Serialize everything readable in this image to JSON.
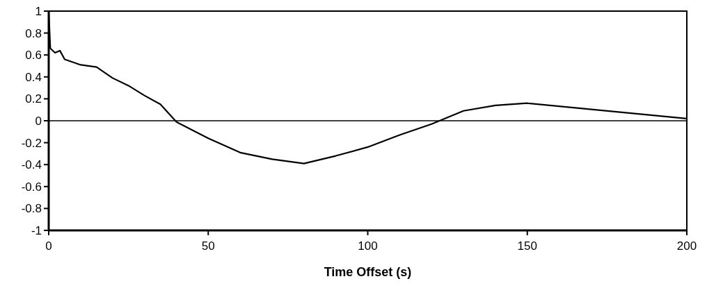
{
  "chart_data": {
    "type": "line",
    "xlabel": "Time Offset (s)",
    "series": [
      {
        "color": "#000000",
        "x": [
          0,
          0.5,
          2,
          3.5,
          5,
          10,
          15,
          20,
          25,
          30,
          35,
          40,
          50,
          60,
          70,
          80,
          90,
          100,
          110,
          120,
          130,
          140,
          150,
          200
        ],
        "values": [
          1,
          0.66,
          0.62,
          0.64,
          0.56,
          0.51,
          0.49,
          0.39,
          0.32,
          0.23,
          0.15,
          -0.01,
          -0.16,
          -0.29,
          -0.35,
          -0.39,
          -0.32,
          -0.24,
          -0.13,
          -0.03,
          0.09,
          0.14,
          0.16,
          0.02
        ]
      }
    ],
    "xlim": [
      0,
      200
    ],
    "xticks": [
      0,
      50,
      100,
      150,
      200
    ],
    "ylim": [
      -1,
      1
    ],
    "yticks": [
      -1,
      -0.8,
      -0.6,
      -0.4,
      -0.2,
      0,
      0.2,
      0.4,
      0.6,
      0.8,
      1
    ],
    "ref_lines": [
      {
        "axis": "y",
        "value": 0,
        "color": "#000000"
      }
    ],
    "grid": false,
    "marker": "none",
    "line_style": "solid"
  }
}
